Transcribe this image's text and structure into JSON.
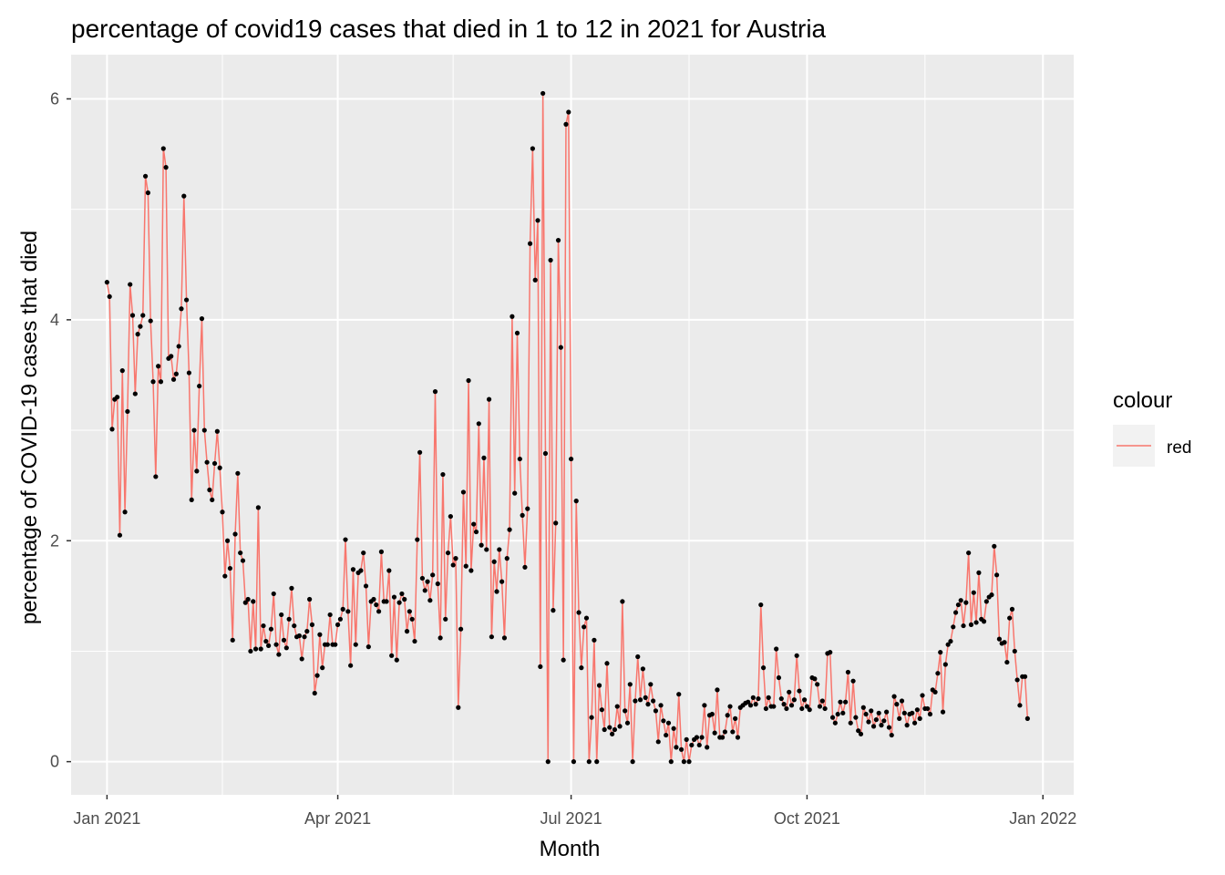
{
  "chart_data": {
    "type": "line",
    "title": "percentage of covid19 cases that died in 1 to 12 in 2021 for Austria",
    "xlabel": "Month",
    "ylabel": "percentage of  COVID-19 cases that died",
    "xlim": [
      "2020-12-18",
      "2022-01-13"
    ],
    "ylim": [
      -0.3,
      6.4
    ],
    "x_ticks": [
      {
        "date": "2021-01-01",
        "label": "Jan 2021"
      },
      {
        "date": "2021-04-01",
        "label": "Apr 2021"
      },
      {
        "date": "2021-07-01",
        "label": "Jul 2021"
      },
      {
        "date": "2021-10-01",
        "label": "Oct 2021"
      },
      {
        "date": "2022-01-01",
        "label": "Jan 2022"
      }
    ],
    "x_minor_ticks": [
      "2021-02-15",
      "2021-05-16",
      "2021-08-16",
      "2021-11-16"
    ],
    "y_ticks": [
      0,
      2,
      4,
      6
    ],
    "y_minor_ticks": [
      1,
      3,
      5
    ],
    "grid": true,
    "panel_background": "#ebebeb",
    "line_color": "#f8766d",
    "point_color": "#000000",
    "legend": {
      "title": "colour",
      "position": "right",
      "entries": [
        "red"
      ]
    },
    "series": [
      {
        "name": "red",
        "x_start": "2021-01-01",
        "x_step_days": 1,
        "values": [
          4.34,
          4.21,
          3.01,
          3.28,
          3.3,
          2.05,
          3.54,
          2.26,
          3.17,
          4.32,
          4.04,
          3.33,
          3.87,
          3.94,
          4.04,
          5.3,
          5.15,
          3.99,
          3.44,
          2.58,
          3.58,
          3.44,
          5.55,
          5.38,
          3.65,
          3.67,
          3.46,
          3.51,
          3.76,
          4.1,
          5.12,
          4.18,
          3.52,
          2.37,
          3.0,
          2.63,
          3.4,
          4.01,
          3.0,
          2.71,
          2.46,
          2.37,
          2.7,
          2.99,
          2.66,
          2.26,
          1.68,
          2.0,
          1.75,
          1.1,
          2.06,
          2.61,
          1.89,
          1.82,
          1.44,
          1.47,
          1.0,
          1.45,
          1.02,
          2.3,
          1.02,
          1.23,
          1.09,
          1.05,
          1.2,
          1.52,
          1.06,
          0.97,
          1.33,
          1.1,
          1.03,
          1.29,
          1.57,
          1.23,
          1.13,
          1.14,
          0.93,
          1.13,
          1.18,
          1.47,
          1.24,
          0.62,
          0.78,
          1.15,
          0.85,
          1.06,
          1.06,
          1.33,
          1.06,
          1.06,
          1.24,
          1.29,
          1.38,
          2.01,
          1.36,
          0.87,
          1.74,
          1.06,
          1.71,
          1.73,
          1.89,
          1.59,
          1.04,
          1.45,
          1.47,
          1.42,
          1.36,
          1.9,
          1.45,
          1.45,
          1.73,
          0.96,
          1.49,
          0.92,
          1.44,
          1.52,
          1.47,
          1.18,
          1.36,
          1.29,
          1.09,
          2.01,
          2.8,
          1.66,
          1.55,
          1.63,
          1.46,
          1.69,
          3.35,
          1.61,
          1.12,
          2.6,
          1.29,
          1.89,
          2.22,
          1.78,
          1.84,
          0.49,
          1.2,
          2.44,
          1.77,
          3.45,
          1.73,
          2.15,
          2.08,
          3.06,
          1.96,
          2.75,
          1.92,
          3.28,
          1.13,
          1.81,
          1.54,
          1.92,
          1.63,
          1.12,
          1.84,
          2.1,
          4.03,
          2.43,
          3.88,
          2.74,
          2.23,
          1.76,
          2.29,
          4.69,
          5.55,
          4.36,
          4.9,
          0.86,
          6.05,
          2.79,
          0.0,
          4.54,
          1.37,
          2.16,
          4.72,
          3.75,
          0.92,
          5.77,
          5.88,
          2.74,
          0.0,
          2.36,
          1.35,
          0.85,
          1.22,
          1.3,
          0.0,
          0.4,
          1.1,
          0.0,
          0.69,
          0.47,
          0.29,
          0.89,
          0.31,
          0.25,
          0.29,
          0.5,
          0.32,
          1.45,
          0.46,
          0.35,
          0.7,
          0.0,
          0.55,
          0.95,
          0.56,
          0.84,
          0.58,
          0.52,
          0.7,
          0.55,
          0.46,
          0.18,
          0.51,
          0.37,
          0.24,
          0.35,
          0.0,
          0.3,
          0.13,
          0.61,
          0.11,
          0.0,
          0.2,
          0.0,
          0.15,
          0.2,
          0.22,
          0.15,
          0.22,
          0.51,
          0.13,
          0.42,
          0.43,
          0.26,
          0.65,
          0.22,
          0.22,
          0.27,
          0.42,
          0.5,
          0.27,
          0.39,
          0.22,
          0.49,
          0.51,
          0.53,
          0.54,
          0.51,
          0.58,
          0.52,
          0.57,
          1.42,
          0.85,
          0.48,
          0.58,
          0.5,
          0.5,
          1.02,
          0.76,
          0.57,
          0.52,
          0.48,
          0.63,
          0.51,
          0.56,
          0.96,
          0.64,
          0.48,
          0.56,
          0.5,
          0.47,
          0.76,
          0.75,
          0.7,
          0.5,
          0.55,
          0.48,
          0.98,
          0.99,
          0.4,
          0.35,
          0.43,
          0.54,
          0.44,
          0.54,
          0.81,
          0.35,
          0.73,
          0.4,
          0.28,
          0.25,
          0.49,
          0.43,
          0.36,
          0.46,
          0.32,
          0.38,
          0.44,
          0.33,
          0.37,
          0.45,
          0.31,
          0.24,
          0.59,
          0.52,
          0.39,
          0.55,
          0.44,
          0.33,
          0.43,
          0.44,
          0.35,
          0.47,
          0.39,
          0.6,
          0.48,
          0.48,
          0.43,
          0.65,
          0.63,
          0.8,
          0.99,
          0.45,
          0.88,
          1.06,
          1.09,
          1.22,
          1.35,
          1.42,
          1.46,
          1.23,
          1.44,
          1.89,
          1.24,
          1.53,
          1.26,
          1.71,
          1.29,
          1.27,
          1.45,
          1.49,
          1.51,
          1.95,
          1.69,
          1.11,
          1.07,
          1.08,
          0.9,
          1.3,
          1.38,
          1.0,
          0.74,
          0.51,
          0.77,
          0.77,
          0.39
        ]
      }
    ]
  }
}
